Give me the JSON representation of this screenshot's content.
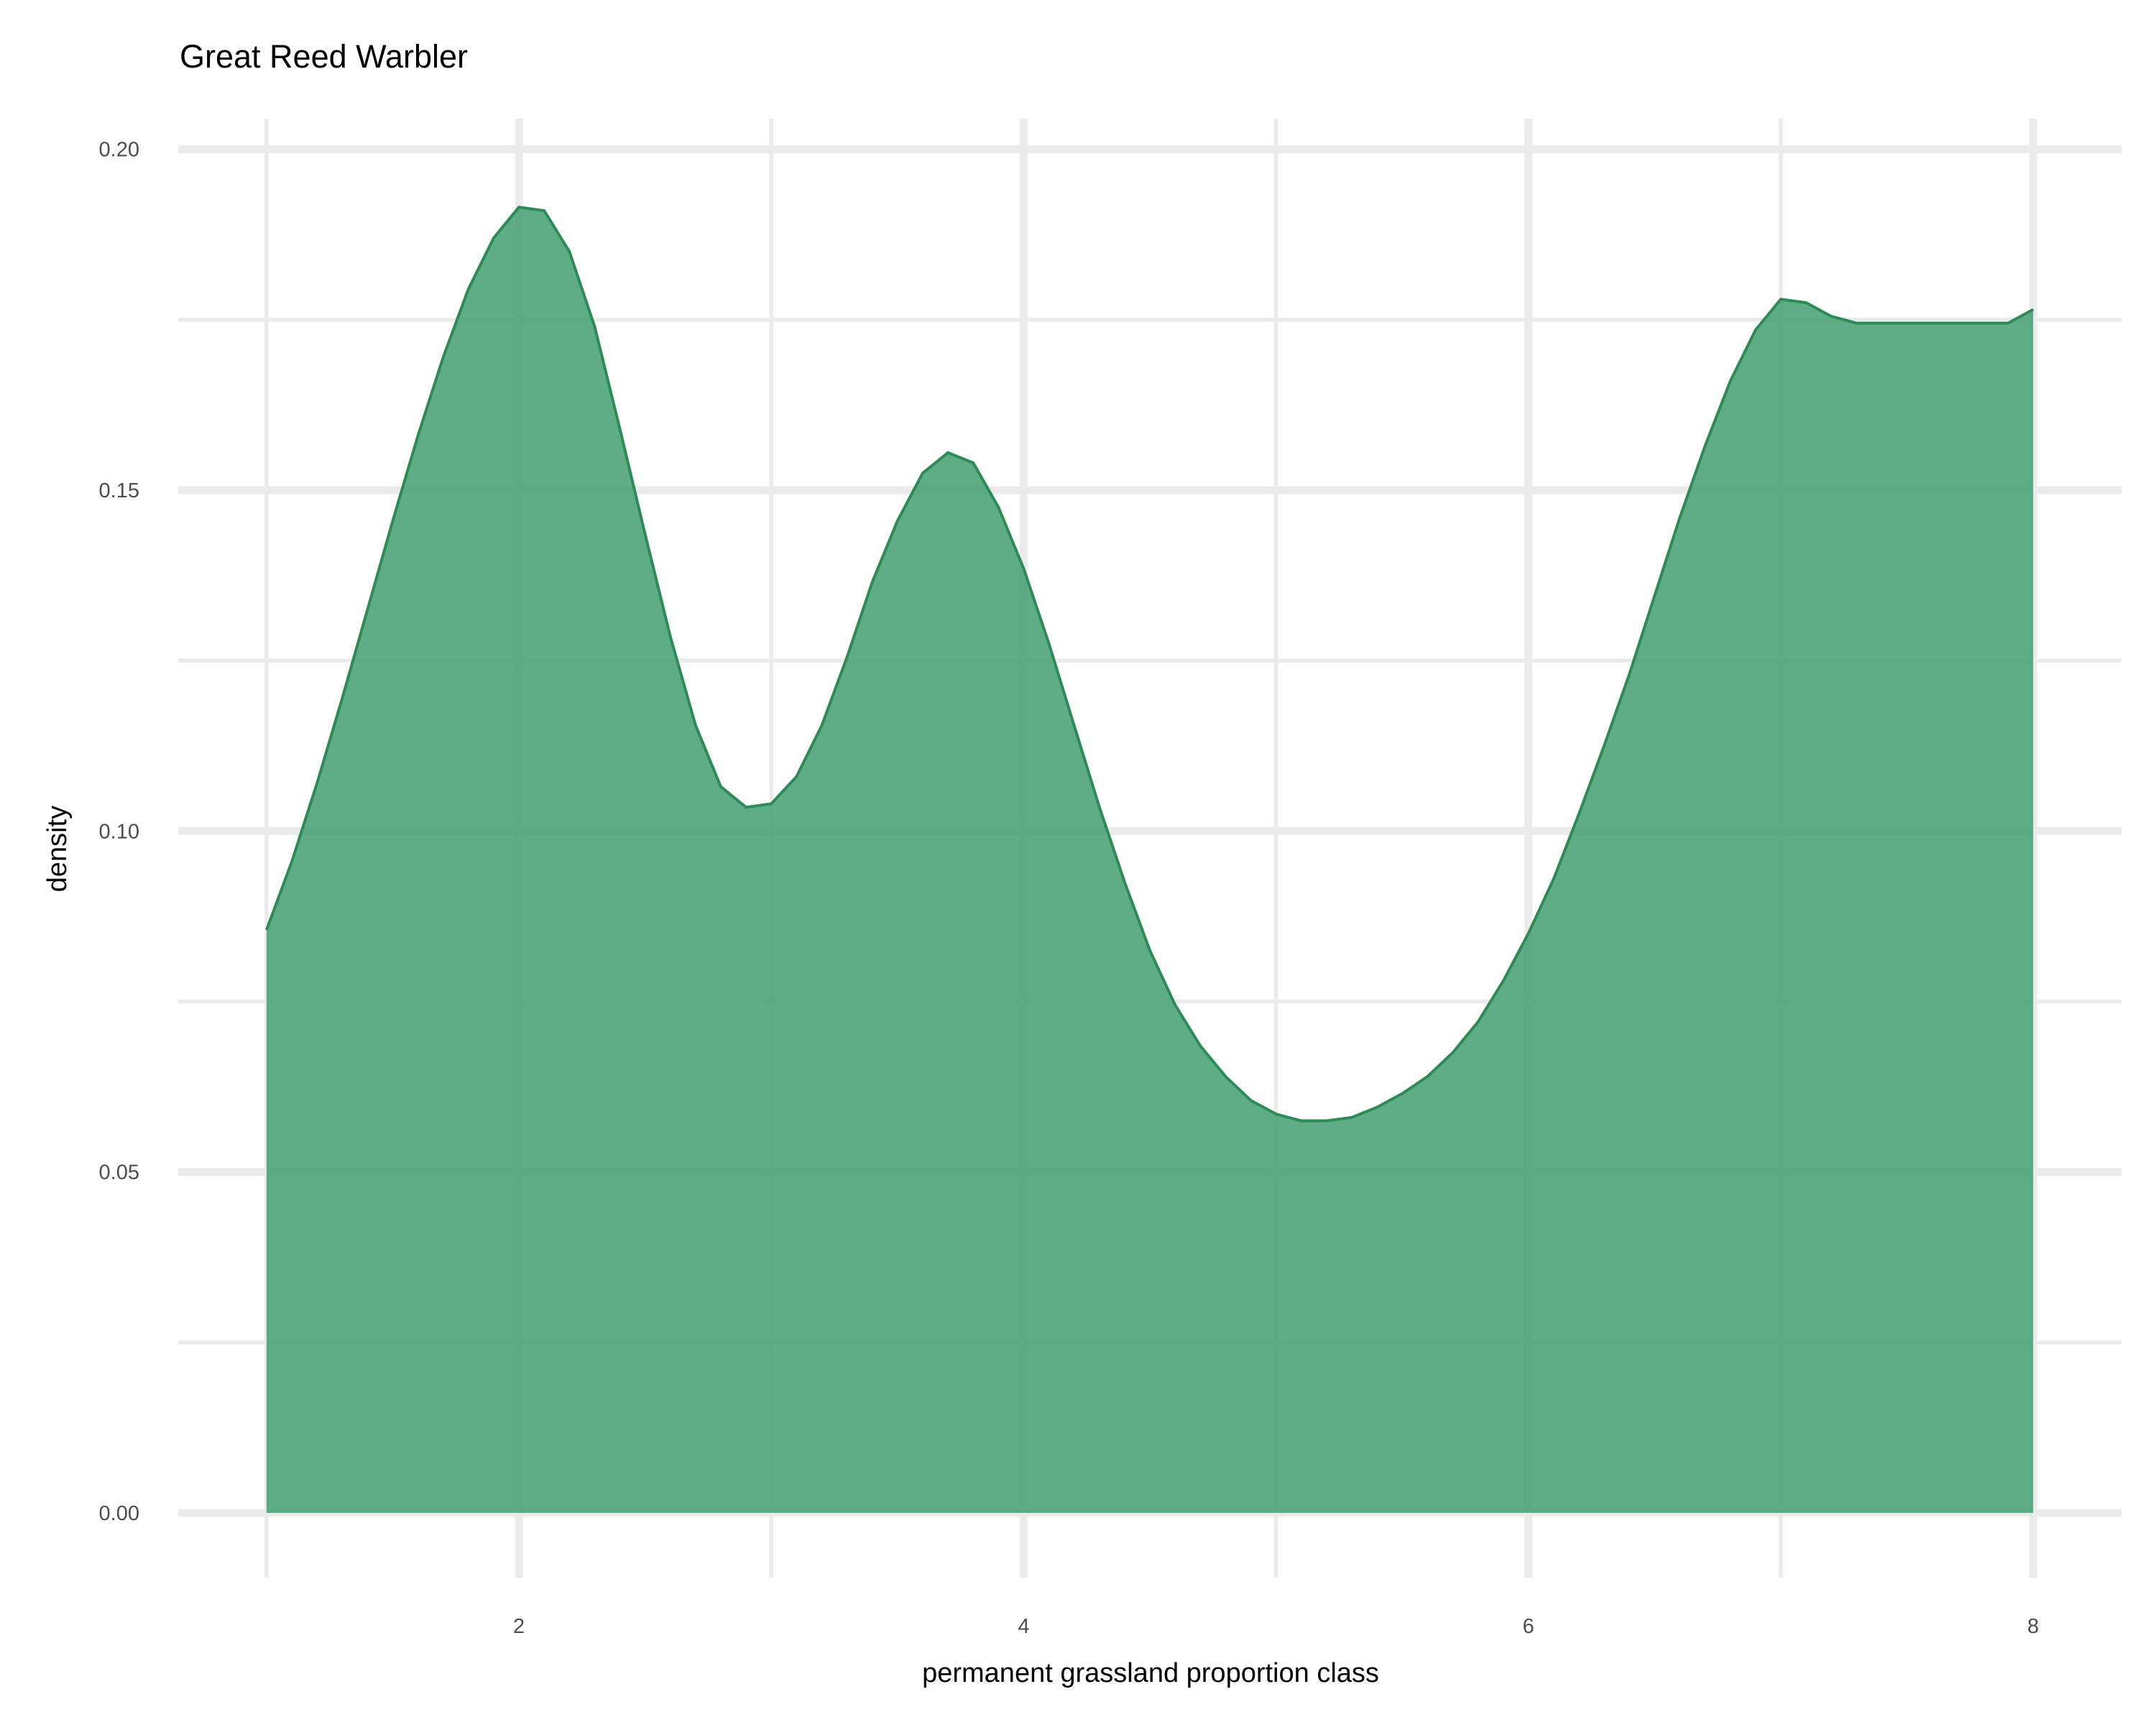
{
  "chart_data": {
    "type": "area",
    "title": "Great Reed Warbler",
    "xlabel": "permanent grassland proportion class",
    "ylabel": "density",
    "xlim": [
      0.65,
      8.35
    ],
    "ylim": [
      -0.0095,
      0.2045
    ],
    "x_ticks": [
      2,
      4,
      6,
      8
    ],
    "x_tick_labels": [
      "2",
      "4",
      "6",
      "8"
    ],
    "x_minor_ticks": [
      1,
      3,
      5,
      7
    ],
    "y_ticks": [
      0.0,
      0.05,
      0.1,
      0.15,
      0.2
    ],
    "y_tick_labels": [
      "0.00",
      "0.05",
      "0.10",
      "0.15",
      "0.20"
    ],
    "y_minor_ticks": [
      0.025,
      0.075,
      0.125,
      0.175
    ],
    "grid": true,
    "fill_color": "#3a9b6b",
    "fill_opacity": 0.82,
    "line_color": "#2e8b57",
    "series": [
      {
        "x": [
          1.0,
          1.1,
          1.2,
          1.3,
          1.4,
          1.5,
          1.6,
          1.7,
          1.8,
          1.9,
          2.0,
          2.1,
          2.2,
          2.3,
          2.4,
          2.5,
          2.6,
          2.7,
          2.8,
          2.9,
          3.0,
          3.1,
          3.2,
          3.3,
          3.4,
          3.5,
          3.6,
          3.7,
          3.8,
          3.9,
          4.0,
          4.1,
          4.2,
          4.3,
          4.4,
          4.5,
          4.6,
          4.7,
          4.8,
          4.9,
          5.0,
          5.1,
          5.2,
          5.3,
          5.4,
          5.5,
          5.6,
          5.7,
          5.8,
          5.9,
          6.0,
          6.1,
          6.2,
          6.3,
          6.4,
          6.5,
          6.6,
          6.7,
          6.8,
          6.9,
          7.0,
          7.1,
          7.2,
          7.3,
          7.4,
          7.5,
          7.6,
          7.7,
          7.8,
          7.9,
          8.0
        ],
        "y": [
          0.0855,
          0.0955,
          0.107,
          0.1195,
          0.1325,
          0.1455,
          0.158,
          0.1695,
          0.1795,
          0.187,
          0.1915,
          0.191,
          0.185,
          0.174,
          0.159,
          0.1435,
          0.1285,
          0.1155,
          0.1065,
          0.1035,
          0.104,
          0.108,
          0.1155,
          0.1255,
          0.1365,
          0.1455,
          0.1525,
          0.1555,
          0.154,
          0.1475,
          0.1385,
          0.1275,
          0.1155,
          0.1035,
          0.0925,
          0.0825,
          0.0745,
          0.0685,
          0.064,
          0.0605,
          0.0585,
          0.0575,
          0.0575,
          0.058,
          0.0595,
          0.0615,
          0.064,
          0.0675,
          0.072,
          0.078,
          0.085,
          0.093,
          0.1025,
          0.1125,
          0.123,
          0.1345,
          0.146,
          0.1565,
          0.166,
          0.1735,
          0.178,
          0.1775,
          0.1755,
          0.1745,
          0.1745,
          0.1745,
          0.1745,
          0.1745,
          0.1745,
          0.1745,
          0.1765
        ]
      }
    ]
  }
}
